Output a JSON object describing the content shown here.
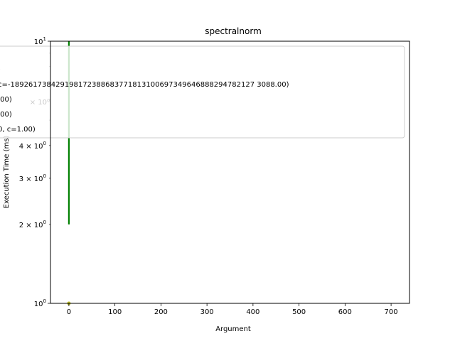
{
  "chart_data": {
    "type": "line",
    "title": "spectralnorm",
    "xlabel": "Argument",
    "ylabel": "Execution Time (ms)",
    "xlim": [
      -40,
      740
    ],
    "ylim": [
      1,
      10
    ],
    "yscale": "log",
    "grid": false,
    "legend_placement": "upper-right",
    "x_ticks": [
      {
        "value": 0,
        "label": "0"
      },
      {
        "value": 100,
        "label": "100"
      },
      {
        "value": 200,
        "label": "200"
      },
      {
        "value": 300,
        "label": "300"
      },
      {
        "value": 400,
        "label": "400"
      },
      {
        "value": 500,
        "label": "500"
      },
      {
        "value": 600,
        "label": "600"
      },
      {
        "value": 700,
        "label": "700"
      }
    ],
    "y_major_ticks": [
      {
        "value": 1,
        "label": "10⁰",
        "base": "10",
        "exp": "0"
      },
      {
        "value": 10,
        "label": "10¹",
        "base": "10",
        "exp": "1"
      }
    ],
    "y_minor_ticks": [
      {
        "value": 2,
        "label": "2 × 10⁰",
        "base": "2 × 10",
        "exp": "0"
      },
      {
        "value": 3,
        "label": "3 × 10⁰",
        "base": "3 × 10",
        "exp": "0"
      },
      {
        "value": 4,
        "label": "4 × 10⁰",
        "base": "4 × 10",
        "exp": "0"
      },
      {
        "value": 5,
        "label": "",
        "base": "",
        "exp": ""
      },
      {
        "value": 6,
        "label": "",
        "base": "",
        "exp": ""
      },
      {
        "value": 7,
        "label": "",
        "base": "",
        "exp": ""
      },
      {
        "value": 8,
        "label": "",
        "base": "",
        "exp": ""
      },
      {
        "value": 9,
        "label": "",
        "base": "",
        "exp": ""
      }
    ],
    "series": [
      {
        "color": "#008000",
        "x": [
          0,
          0
        ],
        "y": [
          2,
          10
        ]
      },
      {
        "color": "#bcbd22",
        "x": [
          0
        ],
        "y": [
          1
        ]
      }
    ],
    "legend_entries": [
      {
        "text": ")"
      },
      {
        "text": "c=-189261738429198172388683771813100697349646888294782127 3088.00)"
      },
      {
        "text": ".00)"
      },
      {
        "text": ".00)"
      },
      {
        "text": "0, c=1.00)"
      }
    ],
    "obscured_tick_labels": [
      {
        "text": "× 10⁰"
      }
    ]
  }
}
